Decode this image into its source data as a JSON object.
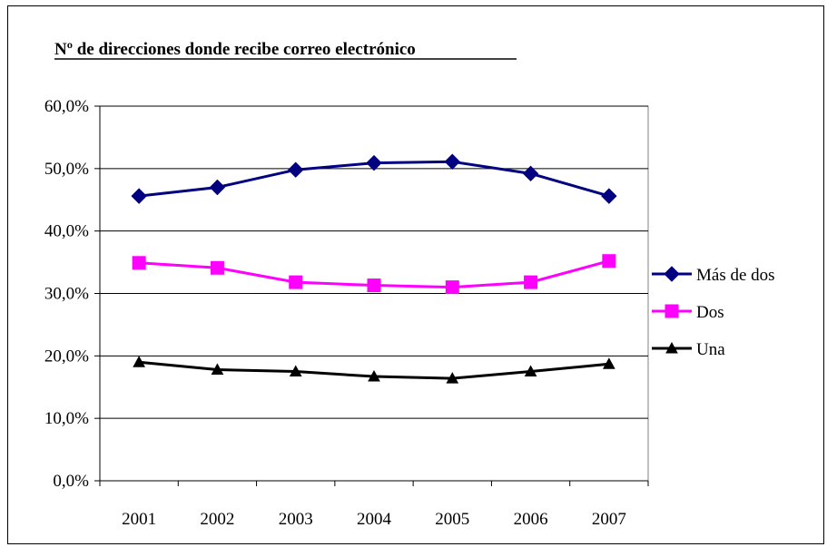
{
  "chart_data": {
    "type": "line",
    "title": "Nº de direcciones donde recibe correo electrónico",
    "xlabel": "",
    "ylabel": "",
    "categories": [
      "2001",
      "2002",
      "2003",
      "2004",
      "2005",
      "2006",
      "2007"
    ],
    "ylim": [
      0,
      60
    ],
    "yticks": [
      0,
      10,
      20,
      30,
      40,
      50,
      60
    ],
    "ytick_labels": [
      "0,0%",
      "10,0%",
      "20,0%",
      "30,0%",
      "40,0%",
      "50,0%",
      "60,0%"
    ],
    "grid": "horizontal",
    "legend_position": "right",
    "series": [
      {
        "name": "Más de dos",
        "color": "#000080",
        "marker": "diamond",
        "values": [
          45.6,
          47.0,
          49.8,
          50.9,
          51.1,
          49.2,
          45.6
        ]
      },
      {
        "name": "Dos",
        "color": "#FF00FF",
        "marker": "square",
        "values": [
          34.9,
          34.1,
          31.8,
          31.3,
          31.0,
          31.8,
          35.2
        ]
      },
      {
        "name": "Una",
        "color": "#000000",
        "marker": "triangle",
        "values": [
          19.0,
          17.8,
          17.5,
          16.7,
          16.4,
          17.5,
          18.7
        ]
      }
    ]
  }
}
